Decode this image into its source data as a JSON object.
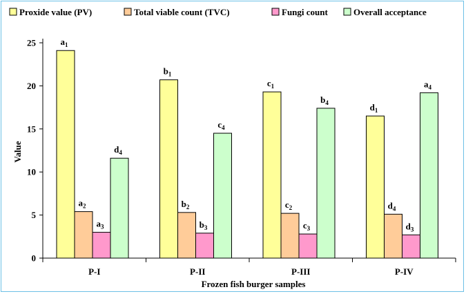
{
  "chart_data": {
    "type": "bar",
    "title": "",
    "xlabel": "Frozen fish burger samples",
    "ylabel": "Value",
    "ylim": [
      0,
      25
    ],
    "yticks": [
      0,
      5,
      10,
      15,
      20,
      25
    ],
    "grid": false,
    "legend_position": "top",
    "categories": [
      "P-I",
      "P-II",
      "P-III",
      "P-IV"
    ],
    "series": [
      {
        "name": "Proxide value (PV)",
        "color": "#ffff99",
        "values": [
          24.1,
          20.7,
          19.3,
          16.5
        ],
        "labels": [
          {
            "letter": "a",
            "sub": "1"
          },
          {
            "letter": "b",
            "sub": "1"
          },
          {
            "letter": "c",
            "sub": "1"
          },
          {
            "letter": "d",
            "sub": "1"
          }
        ]
      },
      {
        "name": "Total viable count (TVC)",
        "color": "#ffcc99",
        "values": [
          5.4,
          5.3,
          5.2,
          5.1
        ],
        "labels": [
          {
            "letter": "a",
            "sub": "2"
          },
          {
            "letter": "b",
            "sub": "2"
          },
          {
            "letter": "c",
            "sub": "2"
          },
          {
            "letter": "d",
            "sub": "4"
          }
        ]
      },
      {
        "name": "Fungi count",
        "color": "#ff99cc",
        "values": [
          3.0,
          2.9,
          2.8,
          2.7
        ],
        "labels": [
          {
            "letter": "a",
            "sub": "3"
          },
          {
            "letter": "b",
            "sub": "3"
          },
          {
            "letter": "c",
            "sub": "3"
          },
          {
            "letter": "d",
            "sub": "3"
          }
        ]
      },
      {
        "name": "Overall acceptance",
        "color": "#ccffcc",
        "values": [
          11.6,
          14.5,
          17.4,
          19.2
        ],
        "labels": [
          {
            "letter": "d",
            "sub": "4"
          },
          {
            "letter": "c",
            "sub": "4"
          },
          {
            "letter": "b",
            "sub": "4"
          },
          {
            "letter": "a",
            "sub": "4"
          }
        ]
      }
    ]
  }
}
